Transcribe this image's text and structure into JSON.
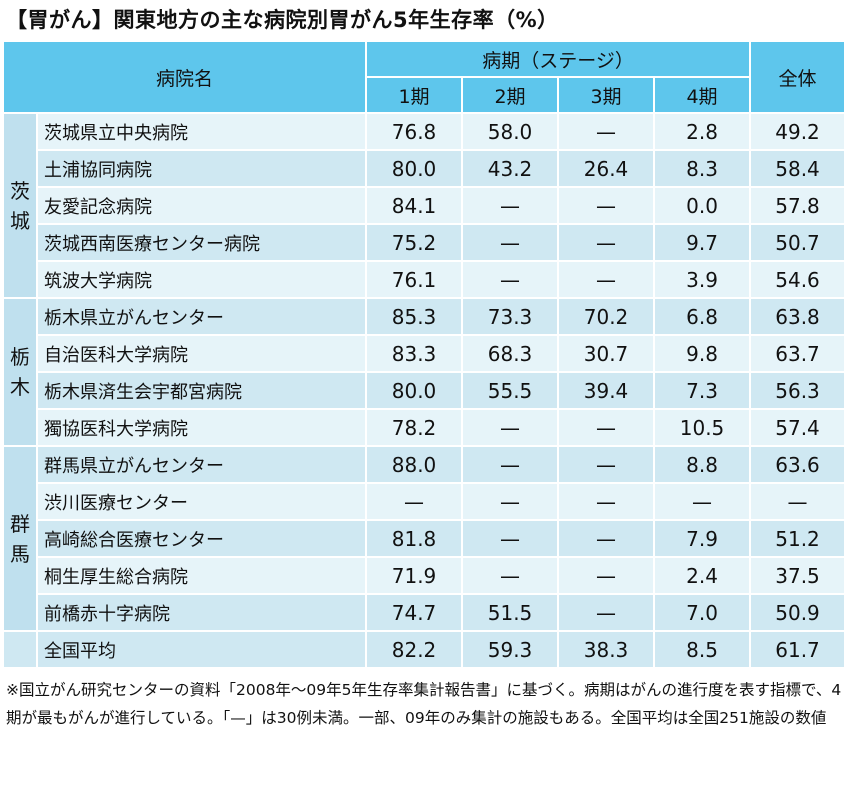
{
  "title": "【胃がん】関東地方の主な病院別胃がん5年生存率（%）",
  "header": {
    "hospital": "病院名",
    "stage_group": "病期（ステージ）",
    "stages": [
      "1期",
      "2期",
      "3期",
      "4期"
    ],
    "total": "全体"
  },
  "groups": [
    {
      "pref": "茨\n城",
      "rows": [
        {
          "name": "茨城県立中央病院",
          "v": [
            "76.8",
            "58.0",
            "—",
            "2.8",
            "49.2"
          ]
        },
        {
          "name": "土浦協同病院",
          "v": [
            "80.0",
            "43.2",
            "26.4",
            "8.3",
            "58.4"
          ]
        },
        {
          "name": "友愛記念病院",
          "v": [
            "84.1",
            "—",
            "—",
            "0.0",
            "57.8"
          ]
        },
        {
          "name": "茨城西南医療センター病院",
          "v": [
            "75.2",
            "—",
            "—",
            "9.7",
            "50.7"
          ]
        },
        {
          "name": "筑波大学病院",
          "v": [
            "76.1",
            "—",
            "—",
            "3.9",
            "54.6"
          ]
        }
      ]
    },
    {
      "pref": "栃\n木",
      "rows": [
        {
          "name": "栃木県立がんセンター",
          "v": [
            "85.3",
            "73.3",
            "70.2",
            "6.8",
            "63.8"
          ]
        },
        {
          "name": "自治医科大学病院",
          "v": [
            "83.3",
            "68.3",
            "30.7",
            "9.8",
            "63.7"
          ]
        },
        {
          "name": "栃木県済生会宇都宮病院",
          "v": [
            "80.0",
            "55.5",
            "39.4",
            "7.3",
            "56.3"
          ]
        },
        {
          "name": "獨協医科大学病院",
          "v": [
            "78.2",
            "—",
            "—",
            "10.5",
            "57.4"
          ]
        }
      ]
    },
    {
      "pref": "群\n馬",
      "rows": [
        {
          "name": "群馬県立がんセンター",
          "v": [
            "88.0",
            "—",
            "—",
            "8.8",
            "63.6"
          ]
        },
        {
          "name": "渋川医療センター",
          "v": [
            "—",
            "—",
            "—",
            "—",
            "—"
          ]
        },
        {
          "name": "高崎総合医療センター",
          "v": [
            "81.8",
            "—",
            "—",
            "7.9",
            "51.2"
          ]
        },
        {
          "name": "桐生厚生総合病院",
          "v": [
            "71.9",
            "—",
            "—",
            "2.4",
            "37.5"
          ]
        },
        {
          "name": "前橋赤十字病院",
          "v": [
            "74.7",
            "51.5",
            "—",
            "7.0",
            "50.9"
          ]
        }
      ]
    }
  ],
  "average": {
    "name": "全国平均",
    "v": [
      "82.2",
      "59.3",
      "38.3",
      "8.5",
      "61.7"
    ]
  },
  "note": "※国立がん研究センターの資料「2008年～09年5年生存率集計報告書」に基づく。病期はがんの進行度を表す指標で、4期が最もがんが進行している。「—」は30例未満。一部、09年のみ集計の施設もある。全国平均は全国251施設の数値",
  "colors": {
    "header": "#5ec6ec",
    "pref": "#bfe0ee",
    "row_light": "#e6f4f9",
    "row_dark": "#cfe8f2"
  }
}
